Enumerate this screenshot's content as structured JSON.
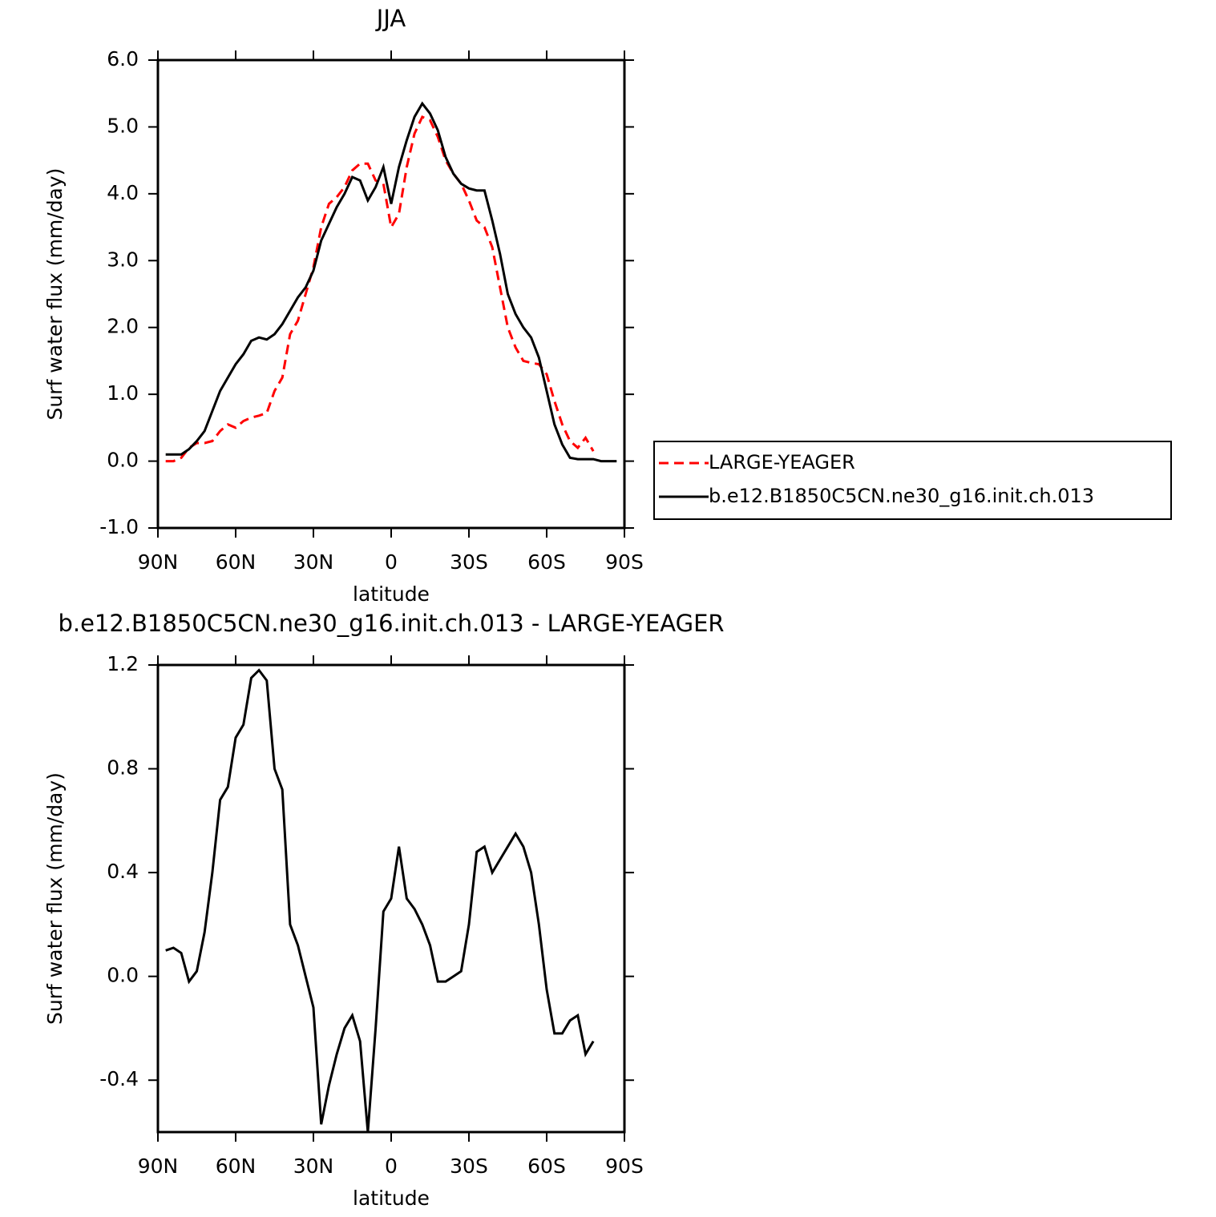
{
  "chart_data": [
    {
      "type": "line",
      "title": "JJA",
      "xlabel": "latitude",
      "ylabel": "Surf water flux (mm/day)",
      "x": [
        87,
        84,
        81,
        78,
        75,
        72,
        69,
        66,
        63,
        60,
        57,
        54,
        51,
        48,
        45,
        42,
        39,
        36,
        33,
        30,
        27,
        24,
        21,
        18,
        15,
        12,
        9,
        6,
        3,
        0,
        -3,
        -6,
        -9,
        -12,
        -15,
        -18,
        -21,
        -24,
        -27,
        -30,
        -33,
        -36,
        -39,
        -42,
        -45,
        -48,
        -51,
        -54,
        -57,
        -60,
        -63,
        -66,
        -69,
        -72,
        -75,
        -78,
        -81,
        -84,
        -87
      ],
      "series": [
        {
          "name": "LARGE-YEAGER",
          "color": "#ff0000",
          "linestyle": "dashed",
          "values": [
            0.0,
            0.0,
            0.05,
            0.2,
            0.27,
            0.27,
            0.3,
            0.45,
            0.55,
            0.5,
            0.6,
            0.65,
            0.68,
            0.72,
            1.05,
            1.25,
            1.9,
            2.1,
            2.5,
            2.9,
            3.5,
            3.85,
            3.95,
            4.1,
            4.35,
            4.45,
            4.45,
            4.2,
            4.15,
            3.5,
            3.7,
            4.4,
            4.9,
            5.15,
            5.1,
            4.85,
            4.5,
            4.3,
            4.15,
            3.9,
            3.6,
            3.5,
            3.2,
            2.6,
            2.0,
            1.7,
            1.5,
            1.47,
            1.45,
            1.3,
            0.9,
            0.55,
            0.3,
            0.2,
            0.35,
            0.15,
            null,
            null,
            null
          ]
        },
        {
          "name": "b.e12.B1850C5CN.ne30_g16.init.ch.013",
          "color": "#000000",
          "linestyle": "solid",
          "values": [
            0.1,
            0.1,
            0.1,
            0.18,
            0.3,
            0.45,
            0.75,
            1.05,
            1.25,
            1.45,
            1.6,
            1.8,
            1.85,
            1.82,
            1.9,
            2.05,
            2.25,
            2.45,
            2.6,
            2.85,
            3.3,
            3.55,
            3.8,
            4.0,
            4.25,
            4.2,
            3.9,
            4.1,
            4.4,
            3.85,
            4.4,
            4.8,
            5.15,
            5.35,
            5.2,
            4.95,
            4.55,
            4.3,
            4.15,
            4.08,
            4.05,
            4.05,
            3.6,
            3.1,
            2.5,
            2.2,
            2.0,
            1.85,
            1.55,
            1.05,
            0.55,
            0.25,
            0.05,
            0.03,
            0.03,
            0.03,
            0.0,
            0.0,
            0.0
          ]
        }
      ],
      "xlim": [
        90,
        -90
      ],
      "xticks": [
        {
          "value": 90,
          "label": "90N"
        },
        {
          "value": 60,
          "label": "60N"
        },
        {
          "value": 30,
          "label": "30N"
        },
        0,
        {
          "value": -30,
          "label": "30S"
        },
        {
          "value": -60,
          "label": "60S"
        },
        {
          "value": -90,
          "label": "90S"
        }
      ],
      "ylim": [
        -1,
        6
      ],
      "yticks": [
        {
          "value": -1,
          "label": "-1.0"
        },
        {
          "value": 0,
          "label": "0.0"
        },
        {
          "value": 1,
          "label": "1.0"
        },
        {
          "value": 2,
          "label": "2.0"
        },
        {
          "value": 3,
          "label": "3.0"
        },
        {
          "value": 4,
          "label": "4.0"
        },
        {
          "value": 5,
          "label": "5.0"
        },
        {
          "value": 6,
          "label": "6.0"
        }
      ],
      "legend": "right"
    },
    {
      "type": "line",
      "title": "b.e12.B1850C5CN.ne30_g16.init.ch.013 - LARGE-YEAGER",
      "xlabel": "latitude",
      "ylabel": "Surf water flux (mm/day)",
      "x": [
        87,
        84,
        81,
        78,
        75,
        72,
        69,
        66,
        63,
        60,
        57,
        54,
        51,
        48,
        45,
        42,
        39,
        36,
        33,
        30,
        27,
        24,
        21,
        18,
        15,
        12,
        9,
        6,
        3,
        0,
        -3,
        -6,
        -9,
        -12,
        -15,
        -18,
        -21,
        -24,
        -27,
        -30,
        -33,
        -36,
        -39,
        -42,
        -45,
        -48,
        -51,
        -54,
        -57,
        -60,
        -63,
        -66,
        -69,
        -72,
        -75,
        -78,
        -81,
        -84,
        -87
      ],
      "values": [
        0.1,
        0.11,
        0.09,
        -0.02,
        0.02,
        0.17,
        0.4,
        0.68,
        0.73,
        0.92,
        0.97,
        1.15,
        1.18,
        1.14,
        0.8,
        0.72,
        0.2,
        0.12,
        0.0,
        -0.12,
        -0.57,
        -0.42,
        -0.3,
        -0.2,
        -0.15,
        -0.25,
        -0.6,
        -0.2,
        0.25,
        0.3,
        0.5,
        0.3,
        0.26,
        0.2,
        0.12,
        -0.02,
        -0.02,
        0.0,
        0.02,
        0.2,
        0.48,
        0.5,
        0.4,
        0.45,
        0.5,
        0.55,
        0.5,
        0.4,
        0.2,
        -0.05,
        -0.22,
        -0.22,
        -0.17,
        -0.15,
        -0.3,
        -0.25,
        null,
        null,
        null
      ],
      "color": "#000000",
      "linestyle": "solid",
      "xlim": [
        90,
        -90
      ],
      "xticks": [
        {
          "value": 90,
          "label": "90N"
        },
        {
          "value": 60,
          "label": "60N"
        },
        {
          "value": 30,
          "label": "30N"
        },
        0,
        {
          "value": -30,
          "label": "30S"
        },
        {
          "value": -60,
          "label": "60S"
        },
        {
          "value": -90,
          "label": "90S"
        }
      ],
      "ylim": [
        -0.6,
        1.2
      ],
      "yticks": [
        {
          "value": -0.4,
          "label": "-0.4"
        },
        {
          "value": 0,
          "label": "0.0"
        },
        {
          "value": 0.4,
          "label": "0.4"
        },
        {
          "value": 0.8,
          "label": "0.8"
        },
        {
          "value": 1.2,
          "label": "1.2"
        }
      ]
    }
  ]
}
